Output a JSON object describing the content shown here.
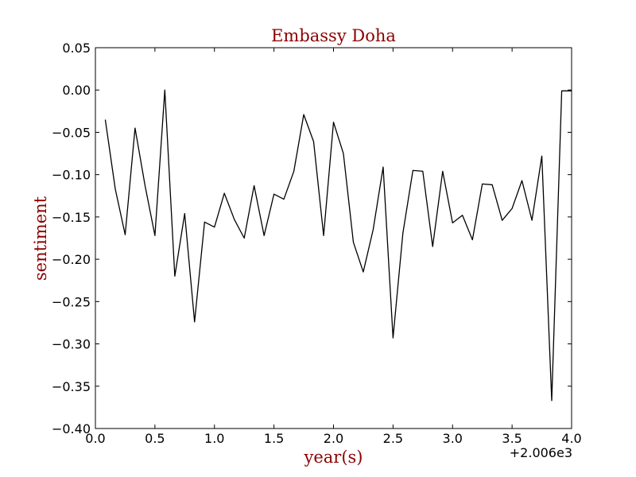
{
  "chart_data": {
    "type": "line",
    "title": "Embassy Doha",
    "xlabel": "year(s)",
    "ylabel": "sentiment",
    "x_offset_label": "+2.006e3",
    "xlim": [
      0.0,
      4.0
    ],
    "ylim": [
      -0.4,
      0.05
    ],
    "x_ticks": [
      "0.0",
      "0.5",
      "1.0",
      "1.5",
      "2.0",
      "2.5",
      "3.0",
      "3.5",
      "4.0"
    ],
    "y_ticks": [
      "0.05",
      "0.00",
      "−0.05",
      "−0.10",
      "−0.15",
      "−0.20",
      "−0.25",
      "−0.30",
      "−0.35",
      "−0.40"
    ],
    "x_tick_values": [
      0.0,
      0.5,
      1.0,
      1.5,
      2.0,
      2.5,
      3.0,
      3.5,
      4.0
    ],
    "y_tick_values": [
      0.05,
      0.0,
      -0.05,
      -0.1,
      -0.15,
      -0.2,
      -0.25,
      -0.3,
      -0.35,
      -0.4
    ],
    "grid": false,
    "colors": {
      "line": "#000000",
      "title": "#8b0000",
      "labels": "#8b0000"
    },
    "series": [
      {
        "x": [
          0.083,
          0.167,
          0.25,
          0.333,
          0.417,
          0.5,
          0.583,
          0.667,
          0.75,
          0.833,
          0.917,
          1.0,
          1.083,
          1.167,
          1.25,
          1.333,
          1.417,
          1.5,
          1.583,
          1.667,
          1.75,
          1.833,
          1.917,
          2.0,
          2.083,
          2.167,
          2.25,
          2.333,
          2.417,
          2.5,
          2.583,
          2.667,
          2.75,
          2.833,
          2.917,
          3.0,
          3.083,
          3.167,
          3.25,
          3.333,
          3.417,
          3.5,
          3.583,
          3.667,
          3.75,
          3.833,
          3.917,
          4.0
        ],
        "y": [
          -0.035,
          -0.117,
          -0.171,
          -0.045,
          -0.113,
          -0.172,
          0.0,
          -0.22,
          -0.146,
          -0.274,
          -0.156,
          -0.162,
          -0.122,
          -0.153,
          -0.175,
          -0.113,
          -0.172,
          -0.123,
          -0.129,
          -0.096,
          -0.029,
          -0.061,
          -0.172,
          -0.038,
          -0.075,
          -0.18,
          -0.215,
          -0.165,
          -0.091,
          -0.293,
          -0.169,
          -0.095,
          -0.096,
          -0.185,
          -0.096,
          -0.157,
          -0.148,
          -0.177,
          -0.111,
          -0.112,
          -0.154,
          -0.14,
          -0.107,
          -0.154,
          -0.078,
          -0.367,
          -0.001,
          -0.001
        ]
      }
    ]
  }
}
